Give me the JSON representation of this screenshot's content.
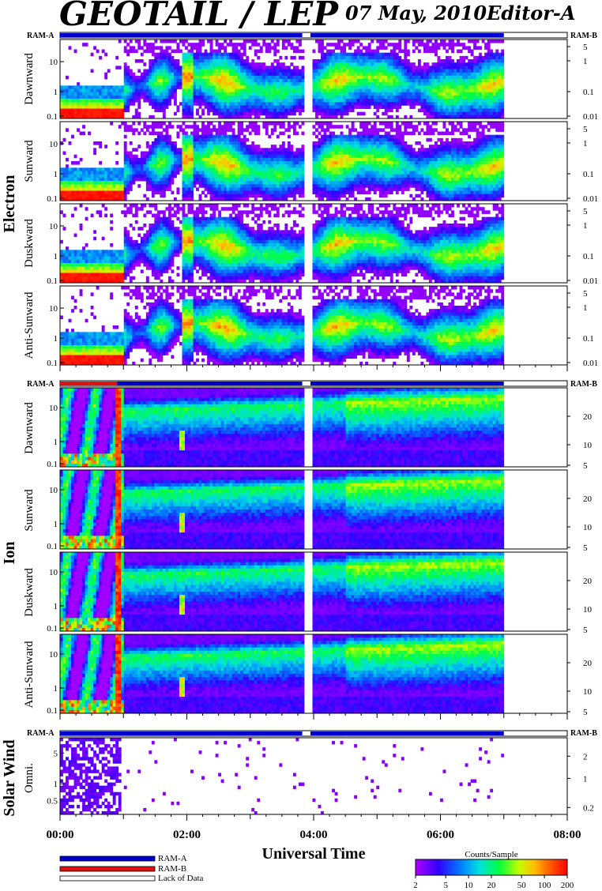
{
  "header": {
    "title": "GEOTAIL / LEP",
    "date": "07 May, 2010",
    "editor": "Editor-A"
  },
  "ram_labels": {
    "left": "RAM-A",
    "right": "RAM-B"
  },
  "sections": [
    {
      "id": "electron",
      "label": "Electron",
      "panels": [
        "Dawnward",
        "Sunward",
        "Duskward",
        "Anti-Sunward"
      ]
    },
    {
      "id": "ion",
      "label": "Ion",
      "panels": [
        "Dawnward",
        "Sunward",
        "Duskward",
        "Anti-Sunward"
      ]
    },
    {
      "id": "solar-wind",
      "label": "Solar Wind",
      "panels": [
        "Omni."
      ]
    }
  ],
  "x_axis": {
    "title": "Universal Time",
    "tick_labels": [
      "00:00",
      "02:00",
      "04:00",
      "06:00",
      "08:00"
    ],
    "range_hours": [
      0,
      8
    ]
  },
  "legend": {
    "items": [
      {
        "label": "RAM-A",
        "color": "#0000cc"
      },
      {
        "label": "RAM-B",
        "color": "#dd1111"
      },
      {
        "label": "Lack of Data",
        "color": "#ffffff"
      }
    ]
  },
  "colorbar": {
    "title": "Counts/Sample",
    "ticks": [
      "2",
      "5",
      "10",
      "20",
      "50",
      "100",
      "200"
    ],
    "range": [
      2,
      200
    ],
    "scale": "log"
  },
  "chart_data": {
    "type": "heatmap",
    "x_unit": "UT hours",
    "x_range": [
      0,
      8
    ],
    "data_end_hour": 7.0,
    "data_gap_hours": [
      [
        3.82,
        3.95
      ]
    ],
    "electron_panels": {
      "left_ticks": [
        "10",
        "1",
        "0.1"
      ],
      "right_ticks": [
        "5",
        "1",
        "0.1",
        "0.01"
      ]
    },
    "ion_panels": {
      "left_ticks": [
        "10",
        "1",
        "0.1"
      ],
      "right_ticks": [
        "20",
        "10",
        "5"
      ]
    },
    "solar_wind_panel": {
      "left_ticks": [
        "5",
        "1",
        "0.5"
      ],
      "right_ticks": [
        "2",
        "1",
        "0.2"
      ]
    },
    "ram_bars": {
      "electron": [
        {
          "start": 0.0,
          "end": 3.82,
          "mode": "RAM-A"
        },
        {
          "start": 3.95,
          "end": 7.0,
          "mode": "RAM-A"
        }
      ],
      "ion": [
        {
          "start": 0.0,
          "end": 0.45,
          "mode": "RAM-B"
        },
        {
          "start": 0.45,
          "end": 0.9,
          "mode": "RAM-B"
        },
        {
          "start": 0.9,
          "end": 3.82,
          "mode": "RAM-A"
        },
        {
          "start": 3.95,
          "end": 7.0,
          "mode": "RAM-A"
        }
      ],
      "solar_wind": [
        {
          "start": 0.0,
          "end": 3.82,
          "mode": "RAM-A"
        },
        {
          "start": 3.95,
          "end": 7.0,
          "mode": "RAM-A"
        }
      ]
    },
    "colors": {
      "ram_a": "#0000cc",
      "ram_b": "#dd1111"
    }
  }
}
